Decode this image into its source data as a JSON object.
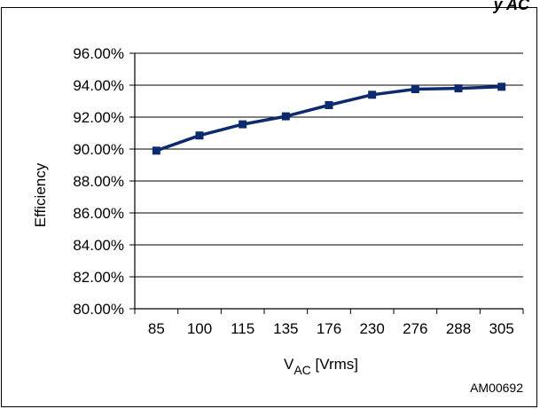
{
  "header_fragment": "y  AC",
  "chart_data": {
    "type": "line",
    "title": "",
    "xlabel_main": "V",
    "xlabel_sub": "AC",
    "xlabel_unit": " [Vrms]",
    "ylabel": "Efficiency",
    "categories": [
      "85",
      "100",
      "115",
      "135",
      "176",
      "230",
      "276",
      "288",
      "305"
    ],
    "series": [
      {
        "values": [
          89.9,
          90.85,
          91.55,
          92.05,
          92.75,
          93.4,
          93.75,
          93.8,
          93.9
        ]
      }
    ],
    "y_ticks": [
      "96.00%",
      "94.00%",
      "92.00%",
      "90.00%",
      "88.00%",
      "86.00%",
      "84.00%",
      "82.00%",
      "80.00%"
    ],
    "ylim": [
      80,
      96
    ],
    "grid": true,
    "line_color": "#0d2a6e",
    "marker": "square"
  },
  "figure_code": "AM00692"
}
